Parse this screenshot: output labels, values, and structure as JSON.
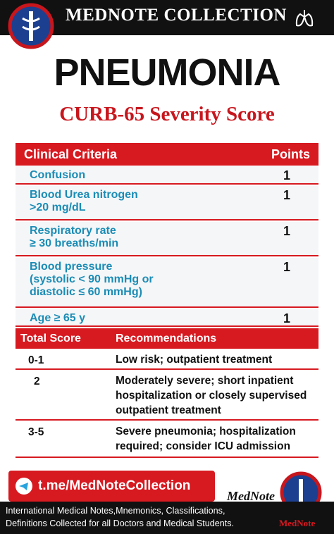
{
  "header": {
    "title": "MEDNOTE COLLECTION"
  },
  "title": "PNEUMONIA",
  "subtitle": "CURB-65 Severity Score",
  "criteria_table": {
    "header": [
      "Clinical Criteria",
      "Points"
    ],
    "rows": [
      [
        "Confusion",
        1
      ],
      [
        "Blood Urea nitrogen\n>20 mg/dL",
        1
      ],
      [
        "Respiratory rate\n≥ 30 breaths/min",
        1
      ],
      [
        "Blood pressure\n(systolic < 90 mmHg or\ndiastolic ≤ 60 mmHg)",
        1
      ],
      [
        "Age ≥ 65 y",
        1
      ]
    ]
  },
  "recommendations_table": {
    "header": [
      "Total Score",
      "Recommendations"
    ],
    "rows": [
      [
        "0-1",
        "Low risk; outpatient treatment"
      ],
      [
        "2",
        "Moderately severe; short inpatient\nhospitalization or closely supervised\noutpatient treatment"
      ],
      [
        "3-5",
        "Severe pneumonia; hospitalization\nrequired; consider ICU admission"
      ]
    ]
  },
  "footer": {
    "link": "t.me/MedNoteCollection",
    "brand": "MedNote",
    "logo_text": "MedNote",
    "text": "International Medical Notes,Mnemonics, Classifications,\nDefinitions Collected for all Doctors and Medical Students."
  }
}
